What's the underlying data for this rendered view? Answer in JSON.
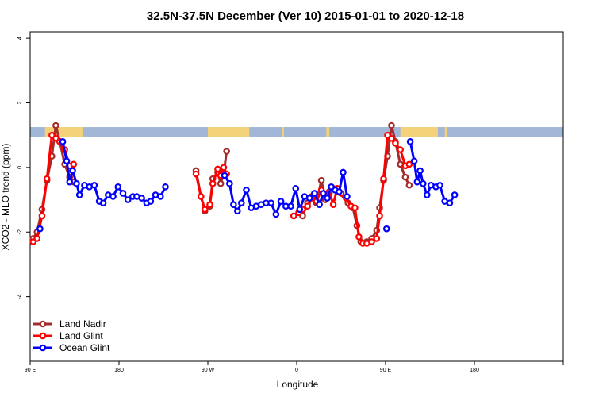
{
  "chart_data": {
    "type": "line",
    "title": "32.5N-37.5N December (Ver 10)   2015-01-01 to 2020-12-18",
    "xlabel": "Longitude",
    "ylabel": "XCO2 - MLO trend (ppm)",
    "xlim": [
      90,
      630
    ],
    "ylim": [
      -6,
      4.2
    ],
    "x_ticks": [
      {
        "value": 90,
        "label": "90 E"
      },
      {
        "value": 180,
        "label": "180"
      },
      {
        "value": 270,
        "label": "90 W"
      },
      {
        "value": 360,
        "label": "0"
      },
      {
        "value": 450,
        "label": "90 E"
      },
      {
        "value": 540,
        "label": "180"
      }
    ],
    "y_ticks": [
      {
        "value": 4,
        "label": "4"
      },
      {
        "value": 2,
        "label": "2"
      },
      {
        "value": 0,
        "label": "0"
      },
      {
        "value": -2,
        "label": "-2"
      },
      {
        "value": -4,
        "label": "-4"
      }
    ],
    "land_band": {
      "y_range": [
        0.95,
        1.25
      ],
      "ocean_color": "#a2b7d8",
      "land_color": "#f4d27a",
      "land_segments": [
        [
          105,
          143
        ],
        [
          270,
          312
        ],
        [
          345,
          347
        ],
        [
          390,
          393
        ],
        [
          465,
          503
        ],
        [
          510,
          512
        ]
      ]
    },
    "legend": {
      "position": "bottom-left",
      "entries": [
        {
          "label": "Land Nadir",
          "color": "#a52a2a"
        },
        {
          "label": "Land Glint",
          "color": "#ff0000"
        },
        {
          "label": "Ocean Glint",
          "color": "#0000ff"
        }
      ]
    },
    "series": [
      {
        "name": "Land Nadir",
        "color": "#a52a2a",
        "points": [
          [
            93,
            -2.2
          ],
          [
            97,
            -2.0
          ],
          [
            102,
            -1.3
          ],
          [
            107,
            -0.4
          ],
          [
            112,
            0.35
          ],
          [
            116,
            1.3
          ],
          [
            120,
            0.8
          ],
          [
            125,
            0.1
          ],
          [
            130,
            -0.3
          ],
          [
            134,
            -0.45
          ],
          [
            258,
            -0.1
          ],
          [
            263,
            -0.9
          ],
          [
            267,
            -1.35
          ],
          [
            272,
            -1.2
          ],
          [
            275,
            -0.35
          ],
          [
            280,
            -0.15
          ],
          [
            283,
            -0.5
          ],
          [
            286,
            -0.2
          ],
          [
            289,
            0.5
          ],
          [
            366,
            -1.5
          ],
          [
            371,
            -1.1
          ],
          [
            375,
            -0.9
          ],
          [
            380,
            -1.1
          ],
          [
            385,
            -0.4
          ],
          [
            389,
            -1.0
          ],
          [
            393,
            -0.8
          ],
          [
            397,
            -0.65
          ],
          [
            401,
            -0.7
          ],
          [
            412,
            -1.1
          ],
          [
            417,
            -1.25
          ],
          [
            421,
            -1.8
          ],
          [
            425,
            -2.3
          ],
          [
            431,
            -2.3
          ],
          [
            436,
            -2.2
          ],
          [
            441,
            -1.95
          ],
          [
            444,
            -1.25
          ],
          [
            448,
            -0.4
          ],
          [
            452,
            0.35
          ],
          [
            456,
            1.3
          ],
          [
            460,
            0.8
          ],
          [
            465,
            0.1
          ],
          [
            470,
            -0.3
          ],
          [
            474,
            -0.55
          ]
        ]
      },
      {
        "name": "Land Glint",
        "color": "#ff0000",
        "points": [
          [
            93,
            -2.3
          ],
          [
            97,
            -2.2
          ],
          [
            102,
            -1.5
          ],
          [
            107,
            -0.35
          ],
          [
            112,
            1.0
          ],
          [
            116,
            0.9
          ],
          [
            120,
            0.8
          ],
          [
            125,
            0.55
          ],
          [
            130,
            0.05
          ],
          [
            134,
            0.1
          ],
          [
            258,
            -0.2
          ],
          [
            263,
            -0.9
          ],
          [
            267,
            -1.3
          ],
          [
            272,
            -1.15
          ],
          [
            275,
            -0.5
          ],
          [
            280,
            -0.05
          ],
          [
            283,
            -0.25
          ],
          [
            286,
            0.0
          ],
          [
            289,
            -0.2
          ],
          [
            357,
            -1.5
          ],
          [
            362,
            -1.4
          ],
          [
            366,
            -1.3
          ],
          [
            371,
            -1.2
          ],
          [
            375,
            -0.95
          ],
          [
            380,
            -1.05
          ],
          [
            385,
            -0.7
          ],
          [
            389,
            -0.9
          ],
          [
            393,
            -0.75
          ],
          [
            397,
            -1.15
          ],
          [
            401,
            -0.65
          ],
          [
            405,
            -0.8
          ],
          [
            410,
            -0.95
          ],
          [
            415,
            -1.2
          ],
          [
            419,
            -1.25
          ],
          [
            423,
            -2.15
          ],
          [
            427,
            -2.35
          ],
          [
            431,
            -2.35
          ],
          [
            436,
            -2.3
          ],
          [
            441,
            -2.2
          ],
          [
            444,
            -1.5
          ],
          [
            448,
            -0.35
          ],
          [
            452,
            1.0
          ],
          [
            456,
            0.9
          ],
          [
            460,
            0.75
          ],
          [
            465,
            0.55
          ],
          [
            470,
            0.05
          ],
          [
            474,
            0.1
          ]
        ]
      },
      {
        "name": "Ocean Glint",
        "color": "#0000ff",
        "points": [
          [
            100,
            -1.9
          ],
          [
            123,
            0.8
          ],
          [
            127,
            0.2
          ],
          [
            130,
            -0.45
          ],
          [
            133,
            -0.1
          ],
          [
            137,
            -0.5
          ],
          [
            140,
            -0.85
          ],
          [
            145,
            -0.55
          ],
          [
            150,
            -0.6
          ],
          [
            155,
            -0.55
          ],
          [
            160,
            -1.05
          ],
          [
            164,
            -1.1
          ],
          [
            169,
            -0.85
          ],
          [
            174,
            -0.9
          ],
          [
            179,
            -0.6
          ],
          [
            184,
            -0.8
          ],
          [
            189,
            -1.0
          ],
          [
            194,
            -0.9
          ],
          [
            198,
            -0.9
          ],
          [
            203,
            -0.95
          ],
          [
            208,
            -1.1
          ],
          [
            212,
            -1.05
          ],
          [
            217,
            -0.85
          ],
          [
            222,
            -0.9
          ],
          [
            227,
            -0.6
          ],
          [
            287,
            -0.25
          ],
          [
            292,
            -0.5
          ],
          [
            296,
            -1.15
          ],
          [
            300,
            -1.35
          ],
          [
            304,
            -1.1
          ],
          [
            309,
            -0.7
          ],
          [
            314,
            -1.25
          ],
          [
            319,
            -1.2
          ],
          [
            324,
            -1.15
          ],
          [
            329,
            -1.1
          ],
          [
            334,
            -1.1
          ],
          [
            339,
            -1.45
          ],
          [
            344,
            -1.05
          ],
          [
            349,
            -1.2
          ],
          [
            354,
            -1.2
          ],
          [
            359,
            -0.65
          ],
          [
            363,
            -1.3
          ],
          [
            368,
            -0.9
          ],
          [
            373,
            -0.95
          ],
          [
            378,
            -0.8
          ],
          [
            383,
            -1.15
          ],
          [
            387,
            -0.8
          ],
          [
            391,
            -0.95
          ],
          [
            395,
            -0.6
          ],
          [
            399,
            -0.7
          ],
          [
            403,
            -0.75
          ],
          [
            407,
            -0.15
          ],
          [
            411,
            -0.9
          ],
          [
            451,
            -1.9
          ],
          [
            475,
            0.8
          ],
          [
            479,
            0.2
          ],
          [
            482,
            -0.45
          ],
          [
            485,
            -0.1
          ],
          [
            488,
            -0.5
          ],
          [
            492,
            -0.85
          ],
          [
            496,
            -0.55
          ],
          [
            501,
            -0.6
          ],
          [
            505,
            -0.55
          ],
          [
            510,
            -1.05
          ],
          [
            515,
            -1.1
          ],
          [
            520,
            -0.85
          ]
        ]
      }
    ]
  }
}
